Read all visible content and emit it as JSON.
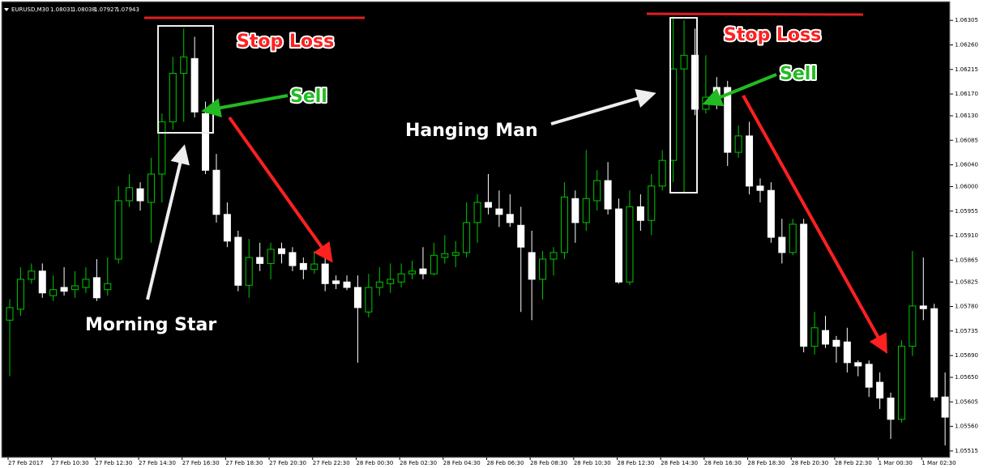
{
  "chart_data": {
    "type": "candlestick",
    "symbol": "EURUSD,M30",
    "header_values": [
      1.08031,
      1.08038,
      1.07927,
      1.07943
    ],
    "bull_color": "#00c800",
    "bear_color": "#ffffff",
    "annotations": [
      "Stop Loss",
      "Sell",
      "Morning Star",
      "Stop Loss",
      "Sell",
      "Hanging Man"
    ],
    "categories": [
      "27 Feb 2017",
      null,
      null,
      null,
      "27 Feb 10:30",
      null,
      null,
      null,
      "27 Feb 12:30",
      null,
      null,
      null,
      "27 Feb 14:30",
      null,
      null,
      null,
      "27 Feb 16:30",
      null,
      null,
      null,
      "27 Feb 18:30",
      null,
      null,
      null,
      "27 Feb 20:30",
      null,
      null,
      null,
      "27 Feb 22:30",
      null,
      null,
      null,
      "28 Feb 00:30",
      null,
      null,
      null,
      "28 Feb 02:30",
      null,
      null,
      null,
      "28 Feb 04:30",
      null,
      null,
      null,
      "28 Feb 06:30",
      null,
      null,
      null,
      "28 Feb 08:30",
      null,
      null,
      null,
      "28 Feb 10:30",
      null,
      null,
      null,
      "28 Feb 12:30",
      null,
      null,
      null,
      "28 Feb 14:30",
      null,
      null,
      null,
      "28 Feb 16:30",
      null,
      null,
      null,
      "28 Feb 18:30",
      null,
      null,
      null,
      "28 Feb 20:30",
      null,
      null,
      null,
      "28 Feb 22:30",
      null,
      null,
      null,
      "1 Mar 00:30",
      null,
      null,
      null,
      "1 Mar 02:30",
      null,
      null
    ],
    "open": [
      1.05755,
      1.05775,
      1.0583,
      1.05845,
      1.058,
      1.05815,
      1.05811,
      1.05815,
      1.05833,
      1.05811,
      1.05867,
      1.05974,
      1.05996,
      1.05971,
      1.06023,
      1.06119,
      1.06208,
      1.06235,
      1.06134,
      1.0603,
      1.05949,
      1.05907,
      1.05819,
      1.0587,
      1.05859,
      1.05886,
      1.05879,
      1.05859,
      1.05848,
      1.05858,
      1.05827,
      1.05825,
      1.05815,
      1.0577,
      1.05815,
      1.05822,
      1.05825,
      1.0584,
      1.05849,
      1.0584,
      1.0587,
      1.05874,
      1.05879,
      1.05934,
      1.05971,
      1.05959,
      1.05949,
      1.05929,
      1.05879,
      1.0583,
      1.05867,
      1.05879,
      1.05978,
      1.05934,
      1.05974,
      1.06011,
      1.05959,
      1.05825,
      1.05963,
      1.05938,
      1.06001,
      1.06048,
      1.06216,
      1.06241,
      1.06142,
      1.06182,
      1.06182,
      1.06063,
      1.06093,
      1.06001,
      1.05993,
      1.05907,
      1.05879,
      1.05931,
      1.05707,
      1.05736,
      1.05718,
      1.05715,
      1.05677,
      1.05674,
      1.05641,
      1.05612,
      1.05573,
      1.05707,
      1.05781,
      1.05776,
      1.05614
    ],
    "high": [
      1.05793,
      1.05852,
      1.05859,
      1.05859,
      1.05837,
      1.05852,
      1.05845,
      1.05852,
      1.05867,
      1.0587,
      1.06001,
      1.06023,
      1.06008,
      1.06053,
      1.06134,
      1.06238,
      1.0629,
      1.06275,
      1.06156,
      1.0606,
      1.05971,
      1.05919,
      1.05904,
      1.05897,
      1.05897,
      1.05897,
      1.05889,
      1.0587,
      1.05882,
      1.0587,
      1.05837,
      1.05837,
      1.05837,
      1.0584,
      1.05852,
      1.05859,
      1.05859,
      1.05864,
      1.05889,
      1.05897,
      1.05911,
      1.059,
      1.05971,
      1.05986,
      1.06023,
      1.05993,
      1.05986,
      1.05963,
      1.05919,
      1.05882,
      1.05889,
      1.06008,
      1.05993,
      1.06067,
      1.0603,
      1.06045,
      1.05978,
      1.05993,
      1.05986,
      1.06023,
      1.06067,
      1.06312,
      1.06305,
      1.0629,
      1.06241,
      1.06201,
      1.06194,
      1.06112,
      1.06119,
      1.06015,
      1.06008,
      1.05941,
      1.05941,
      1.05941,
      1.0577,
      1.05763,
      1.05726,
      1.05741,
      1.05681,
      1.05681,
      1.05659,
      1.05622,
      1.05718,
      1.05882,
      1.0587,
      1.05785,
      1.05659
    ],
    "low": [
      1.05652,
      1.05763,
      1.05822,
      1.05796,
      1.0579,
      1.058,
      1.05796,
      1.05805,
      1.0579,
      1.058,
      1.05859,
      1.05963,
      1.05956,
      1.05897,
      1.05971,
      1.06105,
      1.06119,
      1.06127,
      1.06023,
      1.05934,
      1.05889,
      1.05808,
      1.05796,
      1.05845,
      1.0583,
      1.05859,
      1.05845,
      1.0583,
      1.0584,
      1.05808,
      1.05812,
      1.0581,
      1.05677,
      1.0576,
      1.058,
      1.05805,
      1.05815,
      1.0583,
      1.0583,
      1.05837,
      1.05859,
      1.05852,
      1.0587,
      1.05897,
      1.05949,
      1.05926,
      1.05926,
      1.0577,
      1.05755,
      1.05793,
      1.05837,
      1.05867,
      1.05897,
      1.05919,
      1.05956,
      1.05949,
      1.05822,
      1.05819,
      1.05919,
      1.05911,
      1.05993,
      1.06008,
      1.05989,
      1.06131,
      1.06134,
      1.06142,
      1.06038,
      1.06053,
      1.05986,
      1.05971,
      1.05897,
      1.05859,
      1.05874,
      1.05696,
      1.05692,
      1.05704,
      1.05677,
      1.05659,
      1.05652,
      1.05614,
      1.05592,
      1.05537,
      1.05567,
      1.05689,
      1.05755,
      1.05607,
      1.05525
    ],
    "close": [
      1.05778,
      1.0583,
      1.05845,
      1.05805,
      1.05811,
      1.05808,
      1.05818,
      1.0583,
      1.05796,
      1.05822,
      1.05974,
      1.05998,
      1.05974,
      1.06023,
      1.06119,
      1.06208,
      1.06238,
      1.06137,
      1.0603,
      1.05949,
      1.059,
      1.05819,
      1.0587,
      1.05859,
      1.05885,
      1.05877,
      1.05855,
      1.05848,
      1.05858,
      1.05822,
      1.05822,
      1.05815,
      1.05778,
      1.05815,
      1.05825,
      1.0583,
      1.0584,
      1.05845,
      1.0584,
      1.05874,
      1.05877,
      1.05879,
      1.05934,
      1.05971,
      1.05962,
      1.05949,
      1.05934,
      1.05889,
      1.0583,
      1.05867,
      1.05879,
      1.05981,
      1.05934,
      1.05978,
      1.06011,
      1.05959,
      1.05825,
      1.05963,
      1.05938,
      1.06001,
      1.06048,
      1.06216,
      1.06241,
      1.06142,
      1.06164,
      1.06161,
      1.06063,
      1.06093,
      1.06001,
      1.05993,
      1.05907,
      1.05879,
      1.05931,
      1.05707,
      1.05741,
      1.05711,
      1.05707,
      1.05677,
      1.05671,
      1.05632,
      1.05612,
      1.05573,
      1.05707,
      1.05781,
      1.05776,
      1.05614,
      1.05577
    ],
    "ylim": [
      1.05503,
      1.06335
    ],
    "yticks": [
      1.06305,
      {
        "value": 1.0626,
        "label": "1.06260"
      },
      1.06215,
      {
        "value": 1.0617,
        "label": "1.06170"
      },
      {
        "value": 1.0613,
        "label": "1.06130"
      },
      1.06085,
      {
        "value": 1.0604,
        "label": "1.06040"
      },
      {
        "value": 1.06,
        "label": "1.06000"
      },
      1.05955,
      {
        "value": 1.0591,
        "label": "1.05910"
      },
      1.05865,
      1.05825,
      {
        "value": 1.0578,
        "label": "1.05780"
      },
      1.05735,
      {
        "value": 1.0569,
        "label": "1.05690"
      },
      {
        "value": 1.0565,
        "label": "1.05650"
      },
      1.05605,
      {
        "value": 1.0556,
        "label": "1.05560"
      },
      1.05515
    ]
  }
}
